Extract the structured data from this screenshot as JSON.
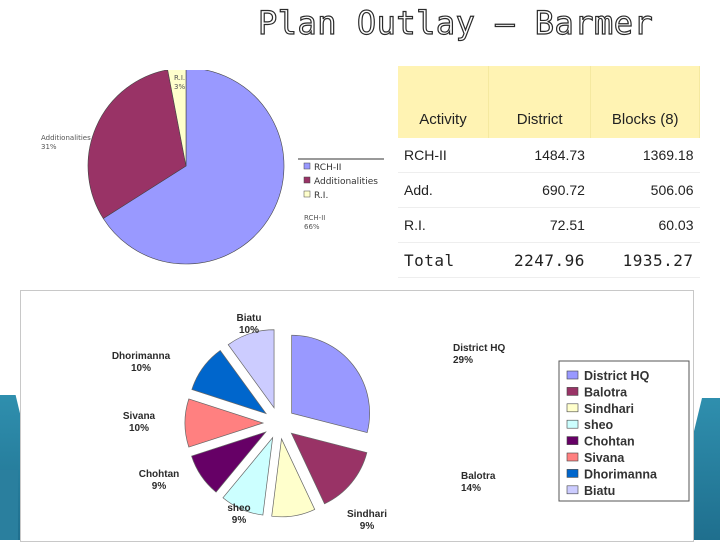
{
  "title": "Plan Outlay – Barmer",
  "colors": {
    "periwinkle": "#9999ff",
    "plum": "#993366",
    "cream": "#ffffcc",
    "light_cyan": "#ccffff",
    "dark_purple": "#660066",
    "salmon": "#ff8080",
    "blue": "#0066cc",
    "lavender": "#ccccff",
    "table_header": "#fff3b3"
  },
  "table": {
    "headers": [
      "Activity",
      "District",
      "Blocks (8)"
    ],
    "rows": [
      {
        "activity": "RCH-II",
        "district": "1484.73",
        "blocks": "1369.18"
      },
      {
        "activity": "Add.",
        "district": "690.72",
        "blocks": "506.06"
      },
      {
        "activity": "R.I.",
        "district": "72.51",
        "blocks": "60.03"
      },
      {
        "activity": "Total",
        "district": "2247.96",
        "blocks": "1935.27"
      }
    ]
  },
  "chart_data": [
    {
      "type": "pie",
      "title": "",
      "legend_position": "right",
      "slices": [
        {
          "label": "RCH-II",
          "value": 66,
          "display": "RCH-II\n66%",
          "color": "#9999ff"
        },
        {
          "label": "Additionalities",
          "value": 31,
          "display": "Additionalities\n31%",
          "color": "#993366"
        },
        {
          "label": "R.I.",
          "value": 3,
          "display": "R.I.\n3%",
          "color": "#ffffcc"
        }
      ]
    },
    {
      "type": "pie",
      "title": "",
      "exploded": true,
      "legend_position": "right",
      "slices": [
        {
          "label": "District HQ",
          "value": 29,
          "pct": "29%",
          "color": "#9999ff"
        },
        {
          "label": "Balotra",
          "value": 14,
          "pct": "14%",
          "color": "#993366"
        },
        {
          "label": "Sindhari",
          "value": 9,
          "pct": "9%",
          "color": "#ffffcc"
        },
        {
          "label": "sheo",
          "value": 9,
          "pct": "9%",
          "color": "#ccffff"
        },
        {
          "label": "Chohtan",
          "value": 9,
          "pct": "9%",
          "color": "#660066"
        },
        {
          "label": "Sivana",
          "value": 10,
          "pct": "10%",
          "color": "#ff8080"
        },
        {
          "label": "Dhorimanna",
          "value": 10,
          "pct": "10%",
          "color": "#0066cc"
        },
        {
          "label": "Biatu",
          "value": 10,
          "pct": "10%",
          "color": "#ccccff"
        }
      ]
    }
  ]
}
